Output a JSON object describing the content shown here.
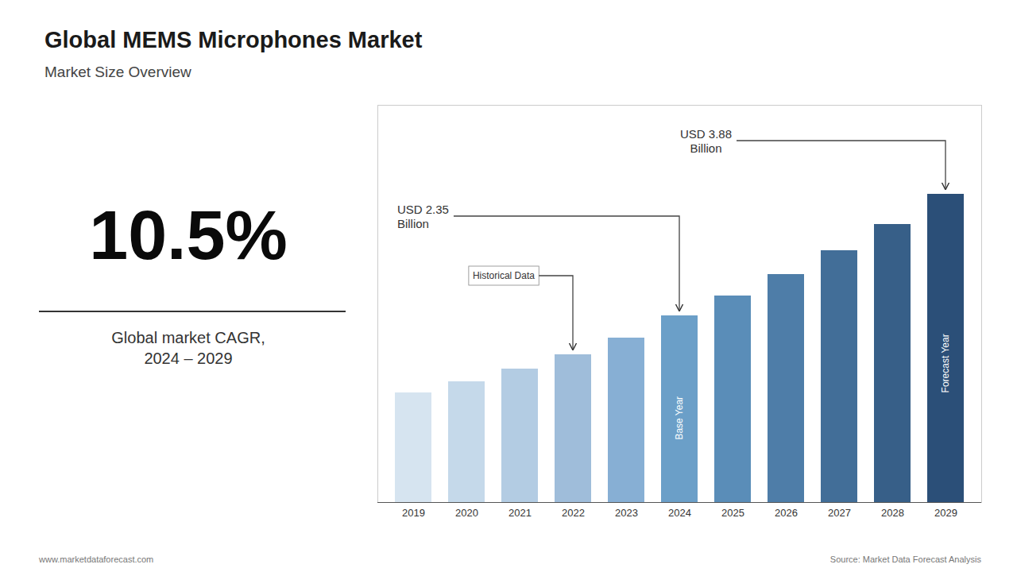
{
  "chart_data": {
    "type": "bar",
    "title": "Global MEMS Microphones Market",
    "subtitle": "Market Size Overview",
    "categories": [
      "2019",
      "2020",
      "2021",
      "2022",
      "2023",
      "2024",
      "2025",
      "2026",
      "2027",
      "2028",
      "2029"
    ],
    "values": [
      1.38,
      1.52,
      1.68,
      1.86,
      2.07,
      2.35,
      2.6,
      2.87,
      3.17,
      3.5,
      3.88
    ],
    "colors": [
      "#d6e4f0",
      "#c5d9ea",
      "#b3cce3",
      "#9fbdda",
      "#87afd4",
      "#6b9fc8",
      "#5a8db8",
      "#4e7da8",
      "#426e98",
      "#375f88",
      "#2b4f78"
    ],
    "ylim": [
      0,
      5
    ],
    "tick_labels": "x",
    "grid": false,
    "annotations": [
      {
        "text": "Base Year",
        "category": "2024"
      },
      {
        "text": "Forecast Year",
        "category": "2029"
      },
      {
        "text": "Historical Data",
        "category": "2022"
      },
      {
        "text": "USD 2.35\nBillion",
        "category": "2024"
      },
      {
        "text": "USD 3.88\nBillion",
        "category": "2029"
      },
      {
        "text": "10.5%"
      },
      {
        "text": "Global market CAGR,\n2024 – 2029"
      },
      {
        "text": "www.marketdataforecast.com"
      },
      {
        "text": "Source: Market Data Forecast Analysis"
      }
    ]
  }
}
